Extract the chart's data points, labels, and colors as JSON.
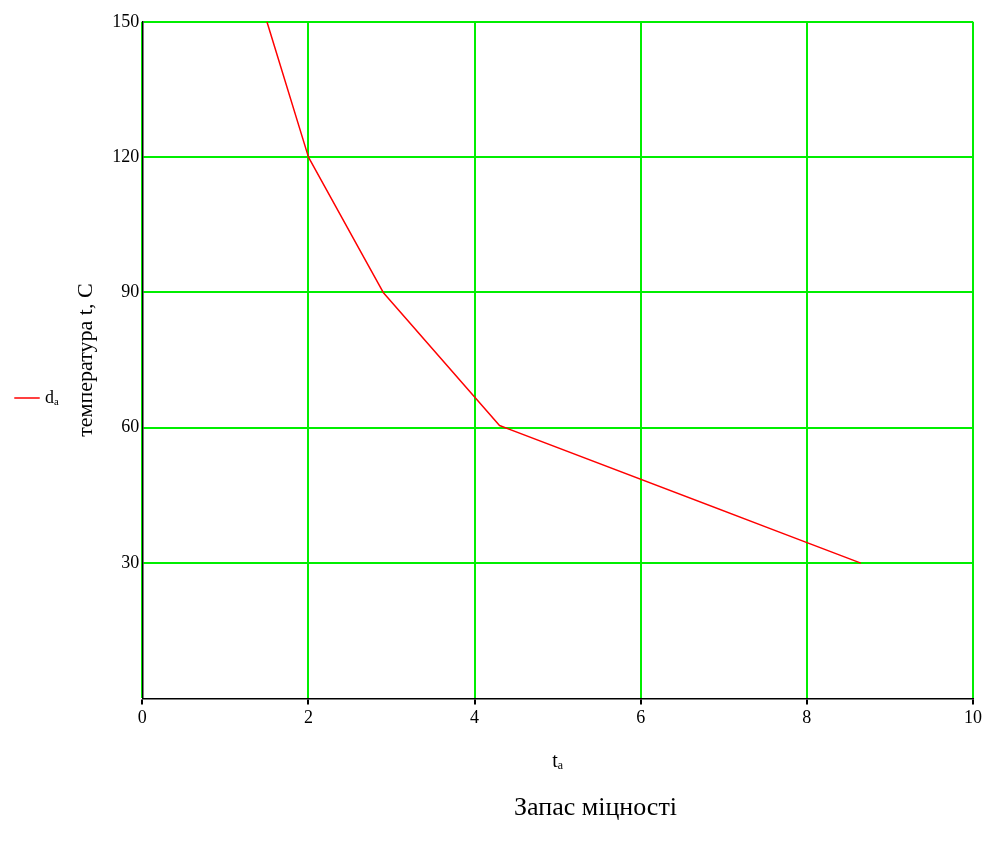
{
  "chart_data": {
    "type": "line",
    "xlabel": "tₐ",
    "ylabel": "температура t, C",
    "annotations": [
      "Запас міцності"
    ],
    "x": [
      1.5,
      2,
      2.9,
      4.3,
      8.65
    ],
    "series": [
      {
        "name": "dₐ",
        "color": "#ff0000",
        "values": [
          150,
          120,
          90,
          60.5,
          30
        ]
      }
    ],
    "xlim": [
      0,
      10
    ],
    "xticks": [
      0,
      2,
      4,
      6,
      8,
      10
    ],
    "ylim": [
      0,
      150
    ],
    "yticks": [
      30,
      60,
      90,
      120,
      150
    ],
    "grid": true,
    "legend": "left",
    "marker": "none",
    "line_style": "solid"
  }
}
